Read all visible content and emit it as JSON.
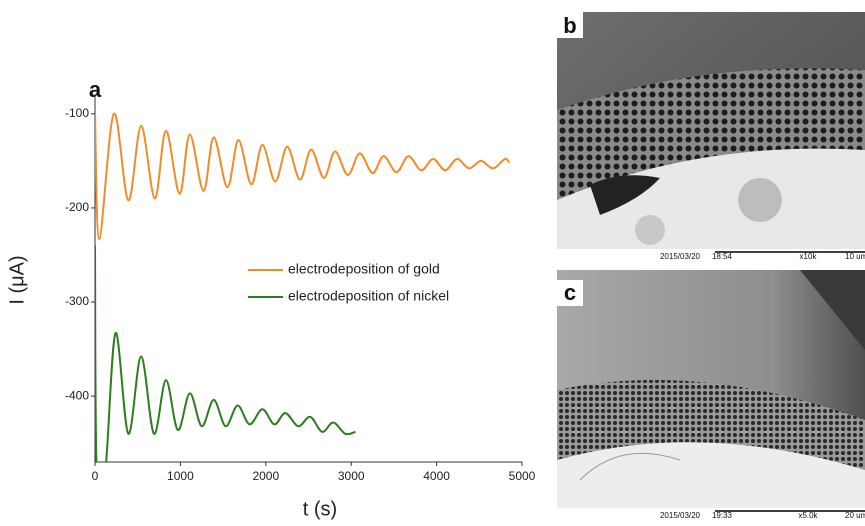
{
  "chart_data": {
    "type": "line",
    "panel_label": "a",
    "x_label": "t (s)",
    "y_label": "I (μA)",
    "xlim": [
      0,
      5000
    ],
    "xticks": [
      0,
      1000,
      2000,
      3000,
      4000,
      5000
    ],
    "ylim": [
      -470,
      -80
    ],
    "yticks": [
      -100,
      -200,
      -300,
      -400
    ],
    "legend": "center",
    "grid": false,
    "series": [
      {
        "name": "electrodeposition of gold",
        "color": "#f28c28",
        "x": [
          0,
          50,
          220,
          390,
          540,
          700,
          830,
          990,
          1110,
          1270,
          1390,
          1550,
          1680,
          1830,
          1960,
          2110,
          2250,
          2400,
          2530,
          2680,
          2810,
          2960,
          3100,
          3250,
          3380,
          3530,
          3670,
          3820,
          3960,
          4100,
          4240,
          4380,
          4520,
          4660,
          4800,
          4850
        ],
        "values": [
          -100,
          -233,
          -100,
          -192,
          -113,
          -190,
          -118,
          -185,
          -122,
          -182,
          -125,
          -178,
          -128,
          -175,
          -133,
          -172,
          -135,
          -170,
          -138,
          -168,
          -140,
          -165,
          -142,
          -163,
          -145,
          -162,
          -145,
          -160,
          -148,
          -160,
          -148,
          -158,
          -150,
          -158,
          -148,
          -152
        ]
      },
      {
        "name": "electrodeposition of nickel",
        "color": "#2e7d1e",
        "x": [
          0,
          20,
          120,
          240,
          390,
          540,
          690,
          830,
          970,
          1110,
          1250,
          1390,
          1530,
          1670,
          1810,
          1960,
          2100,
          2230,
          2380,
          2520,
          2660,
          2790,
          2930,
          3050
        ],
        "values": [
          -240,
          -480,
          -480,
          -333,
          -440,
          -358,
          -440,
          -383,
          -436,
          -397,
          -432,
          -404,
          -432,
          -410,
          -430,
          -414,
          -430,
          -418,
          -432,
          -422,
          -438,
          -428,
          -440,
          -438
        ]
      }
    ]
  },
  "images": [
    {
      "label": "b",
      "caption": [
        "2015/03/20",
        "18:54",
        "x10k",
        "10 um"
      ]
    },
    {
      "label": "c",
      "caption": [
        "2015/03/20",
        "19:33",
        "x5.0k",
        "20 um"
      ]
    }
  ]
}
